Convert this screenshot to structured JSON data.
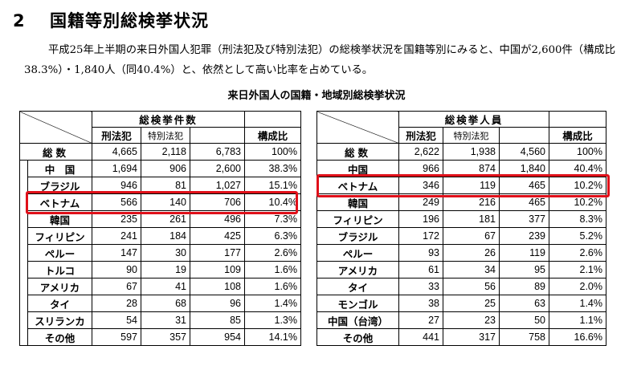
{
  "heading": {
    "number": "2",
    "title": "国籍等別総検挙状況"
  },
  "paragraph": "平成25年上半期の来日外国人犯罪（刑法犯及び特別法犯）の総検挙状況を国籍等別にみると、中国が2,600件（構成比38.3%）・1,840人（同40.4%）と、依然として高い比率を占めている。",
  "caption": "来日外国人の国籍・地域別総検挙状況",
  "highlight_color": "#e0101a",
  "left_table": {
    "group_header": "総検挙件数",
    "col_criminal": "刑法犯",
    "col_special": "特別法犯",
    "col_ratio": "構成比",
    "total": {
      "name": "総数",
      "criminal": "4,665",
      "special": "2,118",
      "sum": "6,783",
      "ratio": "100%"
    },
    "rows": [
      {
        "name": "中　国",
        "criminal": "1,694",
        "special": "906",
        "sum": "2,600",
        "ratio": "38.3%"
      },
      {
        "name": "ブラジル",
        "criminal": "946",
        "special": "81",
        "sum": "1,027",
        "ratio": "15.1%"
      },
      {
        "name": "ベトナム",
        "criminal": "566",
        "special": "140",
        "sum": "706",
        "ratio": "10.4%"
      },
      {
        "name": "韓国",
        "criminal": "235",
        "special": "261",
        "sum": "496",
        "ratio": "7.3%"
      },
      {
        "name": "フィリピン",
        "criminal": "241",
        "special": "184",
        "sum": "425",
        "ratio": "6.3%"
      },
      {
        "name": "ペルー",
        "criminal": "147",
        "special": "30",
        "sum": "177",
        "ratio": "2.6%"
      },
      {
        "name": "トルコ",
        "criminal": "90",
        "special": "19",
        "sum": "109",
        "ratio": "1.6%"
      },
      {
        "name": "アメリカ",
        "criminal": "67",
        "special": "41",
        "sum": "108",
        "ratio": "1.6%"
      },
      {
        "name": "タイ",
        "criminal": "28",
        "special": "68",
        "sum": "96",
        "ratio": "1.4%"
      },
      {
        "name": "スリランカ",
        "criminal": "54",
        "special": "31",
        "sum": "85",
        "ratio": "1.3%"
      },
      {
        "name": "その他",
        "criminal": "597",
        "special": "357",
        "sum": "954",
        "ratio": "14.1%"
      }
    ]
  },
  "right_table": {
    "group_header": "総検挙人員",
    "col_criminal": "刑法犯",
    "col_special": "特別法犯",
    "col_ratio": "構成比",
    "total": {
      "name": "総数",
      "criminal": "2,622",
      "special": "1,938",
      "sum": "4,560",
      "ratio": "100%"
    },
    "rows": [
      {
        "name": "中国",
        "criminal": "966",
        "special": "874",
        "sum": "1,840",
        "ratio": "40.4%"
      },
      {
        "name": "ベトナム",
        "criminal": "346",
        "special": "119",
        "sum": "465",
        "ratio": "10.2%"
      },
      {
        "name": "韓国",
        "criminal": "249",
        "special": "216",
        "sum": "465",
        "ratio": "10.2%"
      },
      {
        "name": "フィリピン",
        "criminal": "196",
        "special": "181",
        "sum": "377",
        "ratio": "8.3%"
      },
      {
        "name": "ブラジル",
        "criminal": "172",
        "special": "67",
        "sum": "239",
        "ratio": "5.2%"
      },
      {
        "name": "ペルー",
        "criminal": "93",
        "special": "26",
        "sum": "119",
        "ratio": "2.6%"
      },
      {
        "name": "アメリカ",
        "criminal": "61",
        "special": "34",
        "sum": "95",
        "ratio": "2.1%"
      },
      {
        "name": "タイ",
        "criminal": "33",
        "special": "56",
        "sum": "89",
        "ratio": "2.0%"
      },
      {
        "name": "モンゴル",
        "criminal": "38",
        "special": "25",
        "sum": "63",
        "ratio": "1.4%"
      },
      {
        "name": "中国（台湾）",
        "criminal": "27",
        "special": "23",
        "sum": "50",
        "ratio": "1.1%"
      },
      {
        "name": "その他",
        "criminal": "441",
        "special": "317",
        "sum": "758",
        "ratio": "16.6%"
      }
    ]
  }
}
